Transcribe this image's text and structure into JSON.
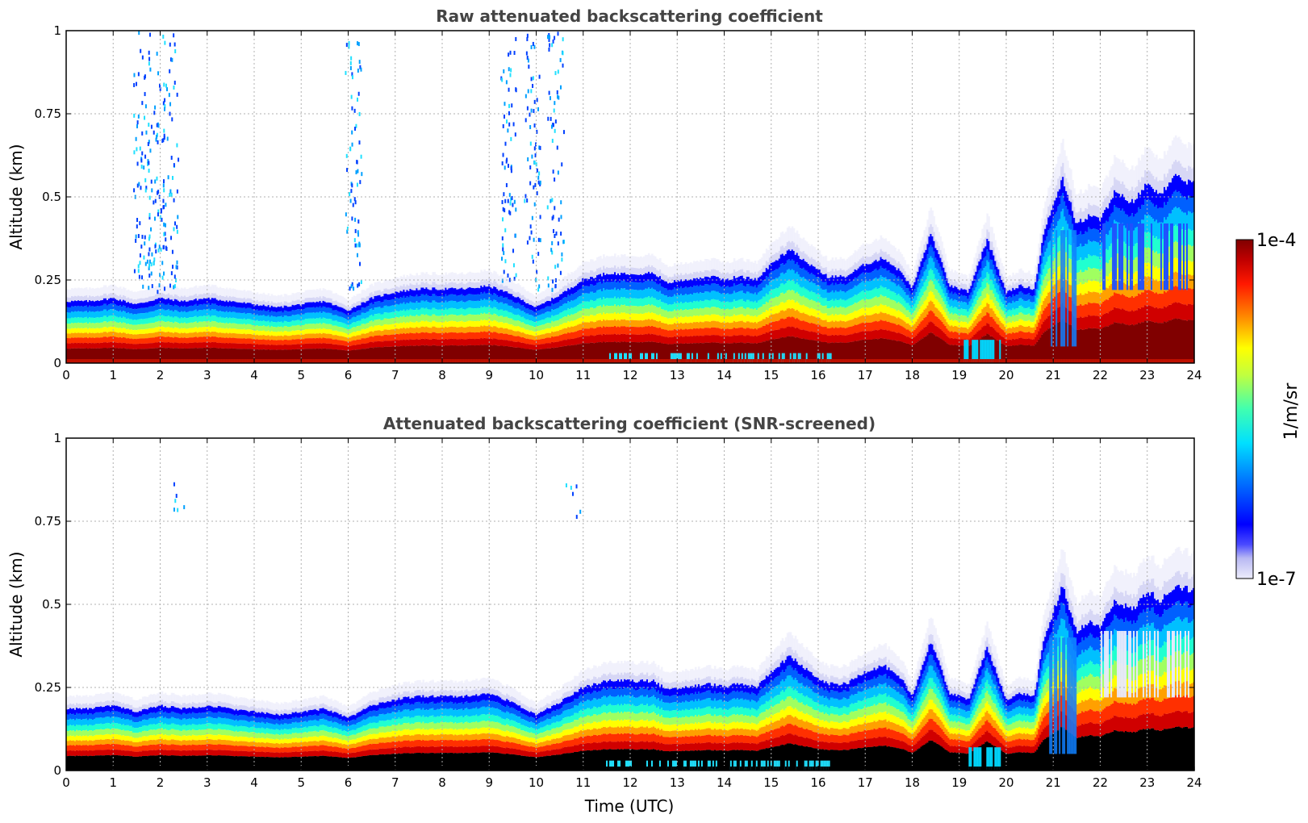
{
  "chart_data": [
    {
      "type": "heatmap",
      "title": "Raw attenuated backscattering coefficient",
      "xlabel": "",
      "ylabel": "Altitude (km)",
      "xlim": [
        0,
        24
      ],
      "ylim": [
        0,
        1
      ],
      "xticks": [
        "0",
        "1",
        "2",
        "3",
        "4",
        "5",
        "6",
        "7",
        "8",
        "9",
        "10",
        "11",
        "12",
        "13",
        "14",
        "15",
        "16",
        "17",
        "18",
        "19",
        "20",
        "21",
        "22",
        "23",
        "24"
      ],
      "yticks": [
        "0",
        "0.25",
        "0.5",
        "0.75",
        "1"
      ],
      "grid": true,
      "screened": false,
      "layer_top_km": [
        [
          0,
          0.2
        ],
        [
          0.5,
          0.2
        ],
        [
          1,
          0.21
        ],
        [
          1.5,
          0.19
        ],
        [
          2,
          0.21
        ],
        [
          2.5,
          0.2
        ],
        [
          3,
          0.21
        ],
        [
          3.5,
          0.2
        ],
        [
          4,
          0.19
        ],
        [
          4.5,
          0.18
        ],
        [
          5,
          0.19
        ],
        [
          5.5,
          0.2
        ],
        [
          6,
          0.17
        ],
        [
          6.5,
          0.21
        ],
        [
          7,
          0.23
        ],
        [
          7.5,
          0.24
        ],
        [
          8,
          0.24
        ],
        [
          8.5,
          0.24
        ],
        [
          9,
          0.25
        ],
        [
          9.5,
          0.22
        ],
        [
          10,
          0.18
        ],
        [
          10.5,
          0.22
        ],
        [
          11,
          0.27
        ],
        [
          11.5,
          0.29
        ],
        [
          12,
          0.29
        ],
        [
          12.5,
          0.29
        ],
        [
          12.8,
          0.26
        ],
        [
          13.2,
          0.27
        ],
        [
          13.7,
          0.28
        ],
        [
          14,
          0.27
        ],
        [
          14.3,
          0.28
        ],
        [
          14.7,
          0.27
        ],
        [
          15,
          0.32
        ],
        [
          15.4,
          0.37
        ],
        [
          15.8,
          0.32
        ],
        [
          16.2,
          0.28
        ],
        [
          16.6,
          0.28
        ],
        [
          17,
          0.32
        ],
        [
          17.4,
          0.34
        ],
        [
          17.8,
          0.29
        ],
        [
          18,
          0.24
        ],
        [
          18.4,
          0.42
        ],
        [
          18.8,
          0.25
        ],
        [
          19.2,
          0.23
        ],
        [
          19.6,
          0.4
        ],
        [
          20,
          0.23
        ],
        [
          20.3,
          0.25
        ],
        [
          20.6,
          0.24
        ],
        [
          20.8,
          0.42
        ],
        [
          21.2,
          0.6
        ],
        [
          21.5,
          0.45
        ],
        [
          21.8,
          0.48
        ],
        [
          22,
          0.46
        ],
        [
          22.3,
          0.55
        ],
        [
          22.7,
          0.52
        ],
        [
          23,
          0.58
        ],
        [
          23.3,
          0.55
        ],
        [
          23.6,
          0.6
        ],
        [
          24,
          0.58
        ]
      ],
      "scatter_columns_hours": [
        1.6,
        1.9,
        2.2,
        6.1,
        9.4,
        9.9,
        10.4
      ]
    },
    {
      "type": "heatmap",
      "title": "Attenuated backscattering coefficient (SNR-screened)",
      "xlabel": "Time (UTC)",
      "ylabel": "Altitude (km)",
      "xlim": [
        0,
        24
      ],
      "ylim": [
        0,
        1
      ],
      "xticks": [
        "0",
        "1",
        "2",
        "3",
        "4",
        "5",
        "6",
        "7",
        "8",
        "9",
        "10",
        "11",
        "12",
        "13",
        "14",
        "15",
        "16",
        "17",
        "18",
        "19",
        "20",
        "21",
        "22",
        "23",
        "24"
      ],
      "yticks": [
        "0",
        "0.25",
        "0.5",
        "0.75",
        "1"
      ],
      "grid": true,
      "screened": true,
      "layer_top_km": [
        [
          0,
          0.2
        ],
        [
          0.5,
          0.2
        ],
        [
          1,
          0.21
        ],
        [
          1.5,
          0.19
        ],
        [
          2,
          0.21
        ],
        [
          2.5,
          0.2
        ],
        [
          3,
          0.21
        ],
        [
          3.5,
          0.2
        ],
        [
          4,
          0.19
        ],
        [
          4.5,
          0.18
        ],
        [
          5,
          0.19
        ],
        [
          5.5,
          0.2
        ],
        [
          6,
          0.17
        ],
        [
          6.5,
          0.21
        ],
        [
          7,
          0.23
        ],
        [
          7.5,
          0.24
        ],
        [
          8,
          0.24
        ],
        [
          8.5,
          0.24
        ],
        [
          9,
          0.25
        ],
        [
          9.5,
          0.22
        ],
        [
          10,
          0.18
        ],
        [
          10.5,
          0.22
        ],
        [
          11,
          0.27
        ],
        [
          11.5,
          0.29
        ],
        [
          12,
          0.29
        ],
        [
          12.5,
          0.29
        ],
        [
          12.8,
          0.26
        ],
        [
          13.2,
          0.27
        ],
        [
          13.7,
          0.28
        ],
        [
          14,
          0.27
        ],
        [
          14.3,
          0.28
        ],
        [
          14.7,
          0.27
        ],
        [
          15,
          0.32
        ],
        [
          15.4,
          0.37
        ],
        [
          15.8,
          0.32
        ],
        [
          16.2,
          0.28
        ],
        [
          16.6,
          0.28
        ],
        [
          17,
          0.32
        ],
        [
          17.4,
          0.34
        ],
        [
          17.8,
          0.29
        ],
        [
          18,
          0.24
        ],
        [
          18.4,
          0.42
        ],
        [
          18.8,
          0.25
        ],
        [
          19.2,
          0.23
        ],
        [
          19.6,
          0.4
        ],
        [
          20,
          0.23
        ],
        [
          20.3,
          0.25
        ],
        [
          20.6,
          0.24
        ],
        [
          20.8,
          0.42
        ],
        [
          21.2,
          0.6
        ],
        [
          21.5,
          0.45
        ],
        [
          21.8,
          0.48
        ],
        [
          22,
          0.46
        ],
        [
          22.3,
          0.55
        ],
        [
          22.7,
          0.52
        ],
        [
          23,
          0.58
        ],
        [
          23.3,
          0.55
        ],
        [
          23.6,
          0.6
        ],
        [
          24,
          0.58
        ]
      ],
      "scatter_columns_hours": [
        2.4,
        10.8
      ]
    }
  ],
  "colorbar": {
    "label": "1/m/sr",
    "min_label": "1e-7",
    "max_label": "1e-4",
    "scale": "log",
    "colormap": "jet",
    "low_color": "#e6e6fa",
    "screened_saturation_color": "#000000"
  }
}
